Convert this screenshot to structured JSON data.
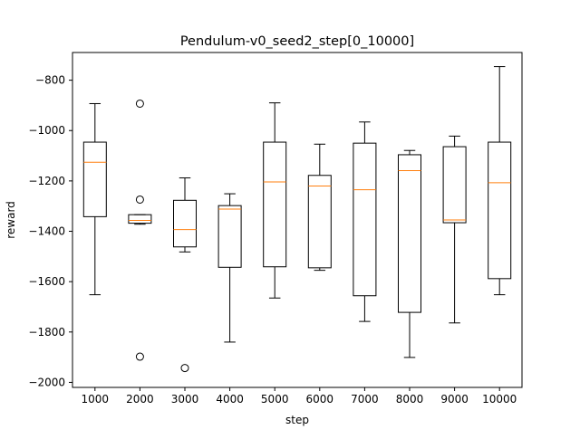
{
  "chart_data": {
    "type": "box",
    "title": "Pendulum-v0_seed2_step[0_10000]",
    "xlabel": "step",
    "ylabel": "reward",
    "ylim": [
      -2020,
      -690
    ],
    "yticks": [
      -2000,
      -1800,
      -1600,
      -1400,
      -1200,
      -1000,
      -800
    ],
    "ytick_labels": [
      "−2000",
      "−1800",
      "−1600",
      "−1400",
      "−1200",
      "−1000",
      "−800"
    ],
    "categories": [
      "1000",
      "2000",
      "3000",
      "4000",
      "5000",
      "6000",
      "7000",
      "8000",
      "9000",
      "10000"
    ],
    "boxes": [
      {
        "category": "1000",
        "whislo": -1652,
        "q1": -1342,
        "med": -1126,
        "q3": -1046,
        "whishi": -893,
        "fliers": []
      },
      {
        "category": "2000",
        "whislo": -1372,
        "q1": -1368,
        "med": -1357,
        "q3": -1334,
        "whishi": -1334,
        "fliers": [
          -893,
          -1274,
          -1898
        ]
      },
      {
        "category": "3000",
        "whislo": -1482,
        "q1": -1462,
        "med": -1393,
        "q3": -1277,
        "whishi": -1188,
        "fliers": [
          -1943
        ]
      },
      {
        "category": "4000",
        "whislo": -1840,
        "q1": -1543,
        "med": -1312,
        "q3": -1298,
        "whishi": -1251,
        "fliers": []
      },
      {
        "category": "5000",
        "whislo": -1665,
        "q1": -1541,
        "med": -1204,
        "q3": -1046,
        "whishi": -890,
        "fliers": []
      },
      {
        "category": "6000",
        "whislo": -1555,
        "q1": -1545,
        "med": -1220,
        "q3": -1178,
        "whishi": -1054,
        "fliers": []
      },
      {
        "category": "7000",
        "whislo": -1758,
        "q1": -1656,
        "med": -1235,
        "q3": -1050,
        "whishi": -966,
        "fliers": []
      },
      {
        "category": "8000",
        "whislo": -1901,
        "q1": -1722,
        "med": -1159,
        "q3": -1096,
        "whishi": -1079,
        "fliers": []
      },
      {
        "category": "9000",
        "whislo": -1764,
        "q1": -1366,
        "med": -1355,
        "q3": -1064,
        "whishi": -1022,
        "fliers": []
      },
      {
        "category": "10000",
        "whislo": -1652,
        "q1": -1588,
        "med": -1207,
        "q3": -1046,
        "whishi": -746,
        "fliers": []
      }
    ],
    "colors": {
      "box": "#000000",
      "median": "#ff7f0e",
      "flier": "#000000",
      "background": "#ffffff"
    },
    "grid": false,
    "legend": "none"
  }
}
